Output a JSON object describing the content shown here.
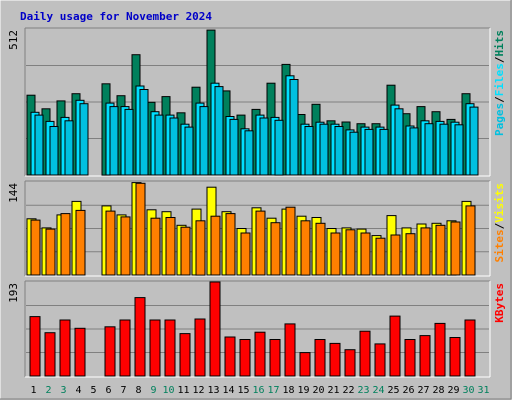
{
  "title": "Daily usage for November 2024",
  "colors": {
    "background": "#c0c0c0",
    "panel": "#c0c0c0",
    "title": "#0000c8",
    "grid": "#808080",
    "hits": "#00805c",
    "files": "#00e0ff",
    "pages": "#00c0e0",
    "visits": "#ffff00",
    "sites": "#ff8000",
    "kbytes": "#ff0000",
    "weekday_label": "#000000",
    "weekend_label": "#00805c"
  },
  "x_days": [
    "1",
    "2",
    "3",
    "4",
    "5",
    "6",
    "7",
    "8",
    "9",
    "10",
    "11",
    "12",
    "13",
    "14",
    "15",
    "16",
    "17",
    "18",
    "19",
    "20",
    "21",
    "22",
    "23",
    "24",
    "25",
    "26",
    "27",
    "28",
    "29",
    "30",
    "31"
  ],
  "weekend_days": [
    "2",
    "3",
    "9",
    "10",
    "16",
    "17",
    "23",
    "24",
    "30",
    "31"
  ],
  "chart_data": [
    {
      "type": "bar",
      "name": "hits-files-pages",
      "ylabel_parts": [
        "Pages",
        "/",
        "Files",
        "/",
        "Hits"
      ],
      "ymax_label": "512",
      "ylim": [
        0,
        512
      ],
      "categories": [
        "1",
        "2",
        "3",
        "4",
        "5",
        "6",
        "7",
        "8",
        "9",
        "10",
        "11",
        "12",
        "13",
        "14",
        "15",
        "16",
        "17",
        "18",
        "19",
        "20",
        "21",
        "22",
        "23",
        "24",
        "25",
        "26",
        "27",
        "28",
        "29",
        "30",
        "31"
      ],
      "series": [
        {
          "name": "Hits",
          "values": [
            280,
            232,
            260,
            285,
            0,
            320,
            278,
            422,
            255,
            275,
            218,
            308,
            508,
            295,
            210,
            230,
            322,
            388,
            212,
            248,
            190,
            186,
            180,
            180,
            315,
            215,
            240,
            222,
            195,
            285,
            0
          ]
        },
        {
          "name": "Files",
          "values": [
            220,
            188,
            202,
            262,
            0,
            252,
            240,
            312,
            222,
            210,
            178,
            252,
            322,
            205,
            162,
            210,
            202,
            348,
            178,
            185,
            178,
            158,
            168,
            168,
            245,
            172,
            190,
            188,
            185,
            250,
            0
          ]
        },
        {
          "name": "Pages",
          "values": [
            210,
            170,
            190,
            250,
            0,
            240,
            230,
            300,
            210,
            200,
            168,
            240,
            310,
            195,
            155,
            200,
            192,
            335,
            170,
            178,
            170,
            150,
            160,
            160,
            232,
            165,
            180,
            178,
            176,
            238,
            0
          ]
        }
      ]
    },
    {
      "type": "bar",
      "name": "visits-sites",
      "ylabel_parts": [
        "Sites",
        "/",
        "Visits"
      ],
      "ymax_label": "144",
      "ylim": [
        0,
        144
      ],
      "categories": [
        "1",
        "2",
        "3",
        "4",
        "5",
        "6",
        "7",
        "8",
        "9",
        "10",
        "11",
        "12",
        "13",
        "14",
        "15",
        "16",
        "17",
        "18",
        "19",
        "20",
        "21",
        "22",
        "23",
        "24",
        "25",
        "26",
        "27",
        "28",
        "29",
        "30",
        "31"
      ],
      "series": [
        {
          "name": "Visits",
          "values": [
            87,
            73,
            93,
            114,
            0,
            107,
            93,
            143,
            101,
            98,
            77,
            102,
            136,
            98,
            72,
            104,
            88,
            102,
            91,
            89,
            72,
            73,
            71,
            61,
            92,
            73,
            79,
            80,
            84,
            114,
            0
          ]
        },
        {
          "name": "Sites",
          "values": [
            85,
            71,
            95,
            100,
            0,
            99,
            90,
            142,
            88,
            89,
            74,
            84,
            91,
            95,
            65,
            99,
            81,
            105,
            84,
            80,
            65,
            70,
            65,
            57,
            62,
            64,
            73,
            77,
            82,
            107,
            0
          ]
        }
      ]
    },
    {
      "type": "bar",
      "name": "kbytes",
      "ylabel_parts": [
        "KBytes"
      ],
      "ymax_label": "193",
      "ylim": [
        0,
        193
      ],
      "categories": [
        "1",
        "2",
        "3",
        "4",
        "5",
        "6",
        "7",
        "8",
        "9",
        "10",
        "11",
        "12",
        "13",
        "14",
        "15",
        "16",
        "17",
        "18",
        "19",
        "20",
        "21",
        "22",
        "23",
        "24",
        "25",
        "26",
        "27",
        "28",
        "29",
        "30",
        "31"
      ],
      "series": [
        {
          "name": "KBytes",
          "values": [
            122,
            89,
            115,
            98,
            0,
            101,
            115,
            161,
            115,
            115,
            87,
            117,
            193,
            80,
            75,
            90,
            75,
            107,
            48,
            75,
            67,
            54,
            92,
            66,
            123,
            75,
            83,
            108,
            79,
            115,
            0
          ]
        }
      ]
    }
  ]
}
